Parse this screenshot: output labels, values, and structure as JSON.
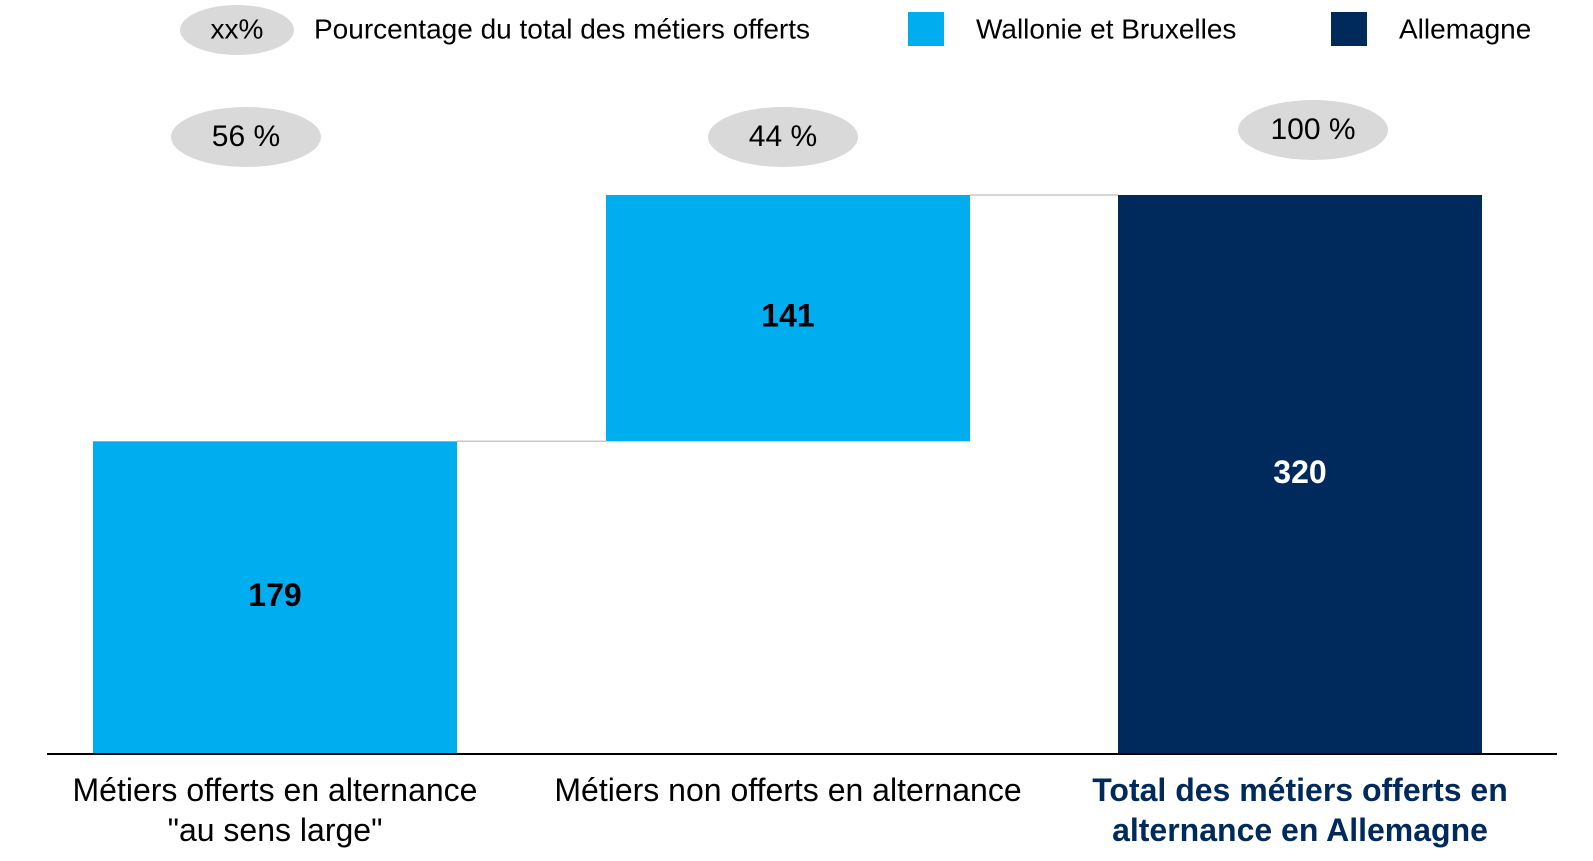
{
  "chart_data": {
    "type": "waterfall",
    "legend_marker": "xx%",
    "legend_marker_text": "Pourcentage du total des métiers offerts",
    "categories": [
      "Métiers offerts en alternance \"au sens large\"",
      "Métiers non offerts en alternance",
      "Total des métiers offerts en alternance en Allemagne"
    ],
    "series": [
      {
        "name": "Wallonie et Bruxelles",
        "color": "#00adef",
        "values": [
          179,
          141,
          null
        ]
      },
      {
        "name": "Allemagne",
        "color": "#002a5c",
        "values": [
          null,
          null,
          320
        ]
      }
    ],
    "percentages": [
      56,
      44,
      100
    ],
    "percentage_labels": [
      "56 %",
      "44 %",
      "100 %"
    ],
    "ylim": [
      0,
      320
    ]
  }
}
